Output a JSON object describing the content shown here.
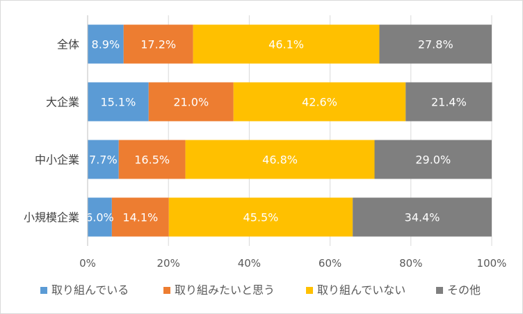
{
  "chart_data": {
    "type": "bar",
    "orientation": "horizontal",
    "stacked": "percent",
    "categories": [
      "全体",
      "大企業",
      "中小企業",
      "小規模企業"
    ],
    "series": [
      {
        "name": "取り組んでいる",
        "color": "#5b9bd5",
        "values": [
          8.9,
          15.1,
          7.7,
          6.0
        ],
        "labels": [
          "8.9%",
          "15.1%",
          "7.7%",
          "6.0%"
        ]
      },
      {
        "name": "取り組みたいと思う",
        "color": "#ed7d31",
        "values": [
          17.2,
          21.0,
          16.5,
          14.1
        ],
        "labels": [
          "17.2%",
          "21.0%",
          "16.5%",
          "14.1%"
        ]
      },
      {
        "name": "取り組んでいない",
        "color": "#ffc000",
        "values": [
          46.1,
          42.6,
          46.8,
          45.5
        ],
        "labels": [
          "46.1%",
          "42.6%",
          "46.8%",
          "45.5%"
        ]
      },
      {
        "name": "その他",
        "color": "#7f7f7f",
        "values": [
          27.8,
          21.4,
          29.0,
          34.4
        ],
        "labels": [
          "27.8%",
          "21.4%",
          "29.0%",
          "34.4%"
        ]
      }
    ],
    "xlim": [
      0,
      100
    ],
    "xticks": [
      "0%",
      "20%",
      "40%",
      "60%",
      "80%",
      "100%"
    ],
    "grid": true,
    "legend_position": "bottom"
  }
}
